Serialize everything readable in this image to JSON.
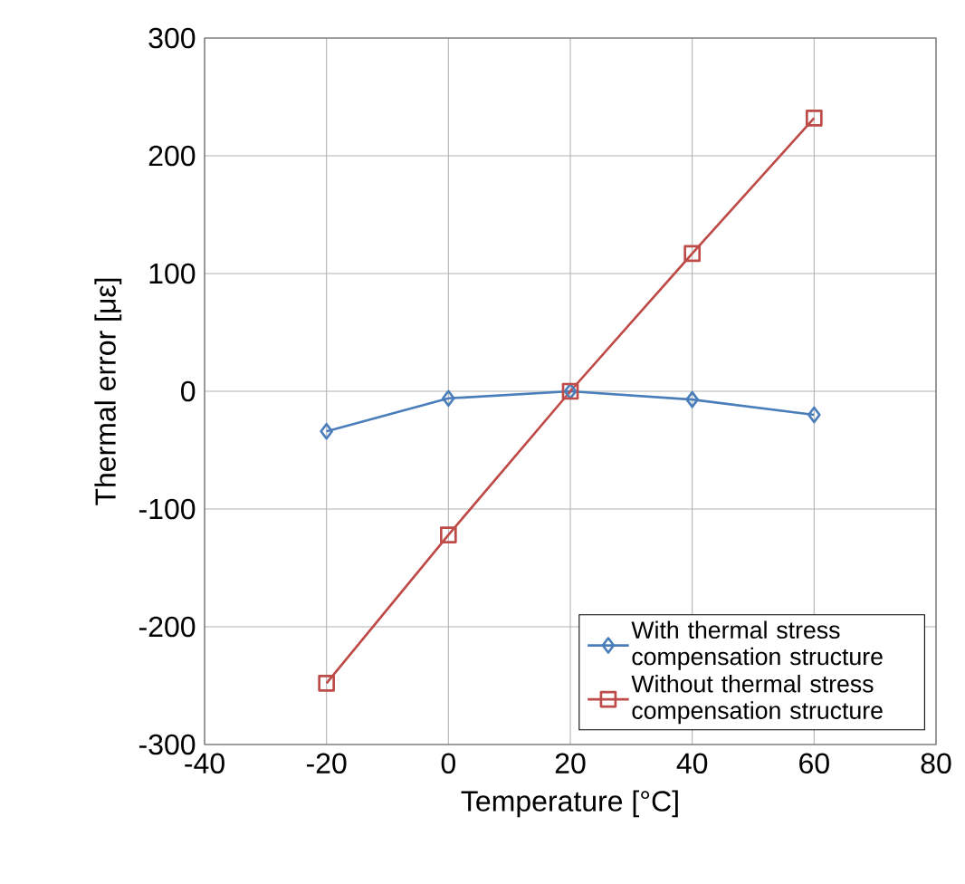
{
  "chart_data": {
    "type": "line",
    "xlabel": "Temperature [°C]",
    "ylabel": "Thermal error [με]",
    "x": [
      -20,
      0,
      20,
      40,
      60
    ],
    "series": [
      {
        "name": "With thermal stress compensation structure",
        "color": "#4a7ebb",
        "values": [
          -34,
          -6,
          0,
          -7,
          -20
        ],
        "marker": "diamond"
      },
      {
        "name": "Without thermal stress compensation structure",
        "color": "#be4b48",
        "values": [
          -248,
          -122,
          0,
          117,
          232
        ],
        "marker": "square"
      }
    ],
    "xlim": [
      -40,
      80
    ],
    "xticks": [
      -40,
      -20,
      0,
      20,
      40,
      60,
      80
    ],
    "ylim": [
      -300,
      300
    ],
    "yticks": [
      -300,
      -200,
      -100,
      0,
      100,
      200,
      300
    ],
    "grid": true,
    "legend": "bottom right",
    "line_style": "solid"
  }
}
